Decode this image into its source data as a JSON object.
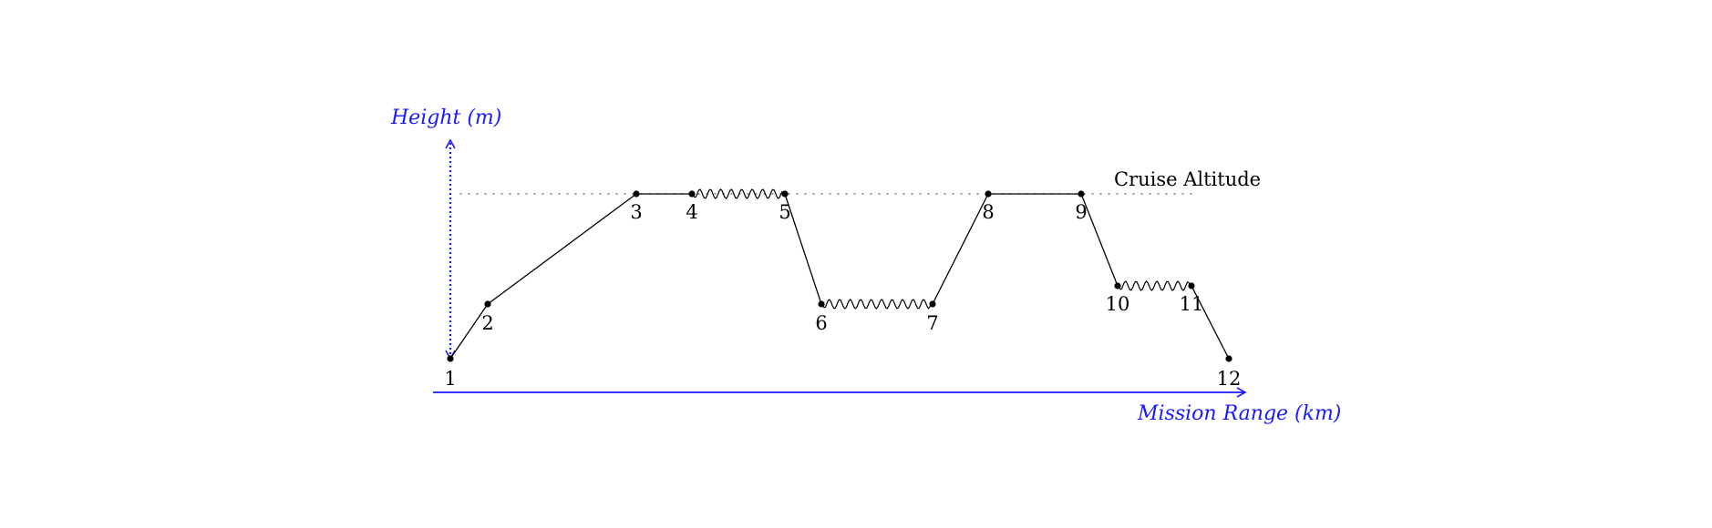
{
  "y_axis": {
    "label": "Height (m)",
    "color": "#1a1aff",
    "style": "dotted, double-headed arrow"
  },
  "x_axis": {
    "label": "Mission Range (km)",
    "color": "#1a1aff",
    "style": "solid arrow"
  },
  "cruise": {
    "label": "Cruise Altitude"
  },
  "points": [
    {
      "id": "1",
      "label": "1"
    },
    {
      "id": "2",
      "label": "2"
    },
    {
      "id": "3",
      "label": "3"
    },
    {
      "id": "4",
      "label": "4"
    },
    {
      "id": "5",
      "label": "5"
    },
    {
      "id": "6",
      "label": "6"
    },
    {
      "id": "7",
      "label": "7"
    },
    {
      "id": "8",
      "label": "8"
    },
    {
      "id": "9",
      "label": "9"
    },
    {
      "id": "10",
      "label": "10"
    },
    {
      "id": "11",
      "label": "11"
    },
    {
      "id": "12",
      "label": "12"
    }
  ],
  "segments": [
    {
      "from": "1",
      "to": "2",
      "style": "straight"
    },
    {
      "from": "2",
      "to": "3",
      "style": "straight"
    },
    {
      "from": "3",
      "to": "4",
      "style": "straight"
    },
    {
      "from": "4",
      "to": "5",
      "style": "wavy"
    },
    {
      "from": "5",
      "to": "6",
      "style": "straight"
    },
    {
      "from": "6",
      "to": "7",
      "style": "wavy"
    },
    {
      "from": "7",
      "to": "8",
      "style": "straight"
    },
    {
      "from": "8",
      "to": "9",
      "style": "straight"
    },
    {
      "from": "9",
      "to": "10",
      "style": "straight"
    },
    {
      "from": "10",
      "to": "11",
      "style": "wavy"
    },
    {
      "from": "11",
      "to": "12",
      "style": "straight"
    }
  ]
}
